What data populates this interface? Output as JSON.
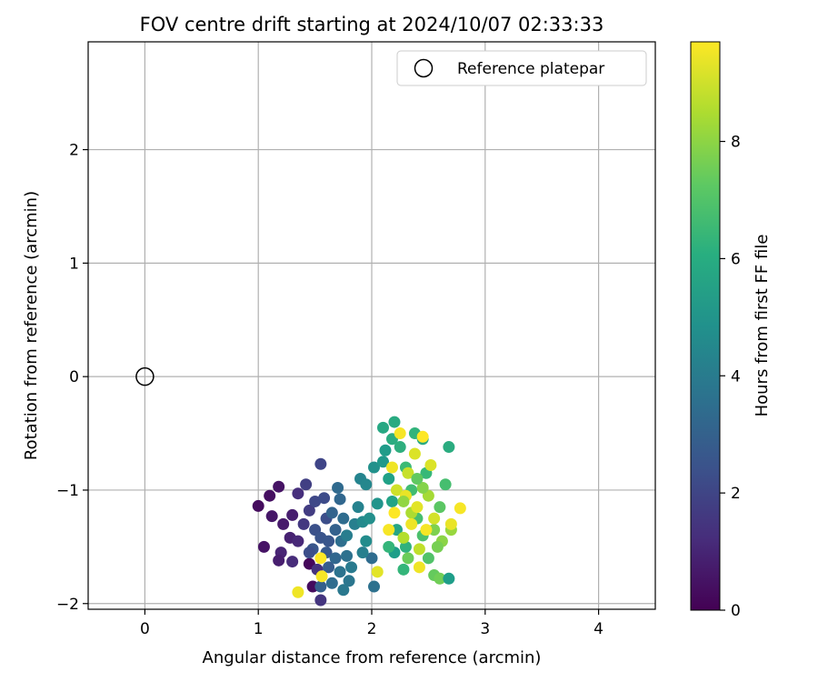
{
  "chart_data": {
    "type": "scatter",
    "title": "FOV centre drift starting at 2024/10/07 02:33:33",
    "xlabel": "Angular distance from reference (arcmin)",
    "ylabel": "Rotation from reference (arcmin)",
    "xlim": [
      -0.5,
      4.5
    ],
    "ylim": [
      -2.05,
      2.95
    ],
    "x_ticks": [
      0,
      1,
      2,
      3,
      4
    ],
    "y_ticks": [
      -2,
      -1,
      0,
      1,
      2
    ],
    "x_tick_labels": [
      "0",
      "1",
      "2",
      "3",
      "4"
    ],
    "y_tick_labels": [
      "−2",
      "−1",
      "0",
      "1",
      "2"
    ],
    "grid": true,
    "legend": {
      "placement": "top-right",
      "entries": [
        {
          "label": "Reference platepar",
          "marker": "open-circle"
        }
      ]
    },
    "reference_point": {
      "x": 0,
      "y": 0
    },
    "colorbar": {
      "label": "Hours from first FF file",
      "colormap": "viridis",
      "range": [
        0,
        9.7
      ],
      "ticks": [
        0,
        2,
        4,
        6,
        8
      ],
      "tick_labels": [
        "0",
        "2",
        "4",
        "6",
        "8"
      ]
    },
    "points": [
      {
        "x": 1.0,
        "y": -1.14,
        "c": 0.3
      },
      {
        "x": 1.1,
        "y": -1.05,
        "c": 0.4
      },
      {
        "x": 1.18,
        "y": -0.97,
        "c": 0.5
      },
      {
        "x": 1.12,
        "y": -1.23,
        "c": 0.6
      },
      {
        "x": 1.22,
        "y": -1.3,
        "c": 0.7
      },
      {
        "x": 1.3,
        "y": -1.22,
        "c": 0.8
      },
      {
        "x": 1.28,
        "y": -1.42,
        "c": 0.9
      },
      {
        "x": 1.05,
        "y": -1.5,
        "c": 0.5
      },
      {
        "x": 1.2,
        "y": -1.55,
        "c": 1.0
      },
      {
        "x": 1.35,
        "y": -1.45,
        "c": 1.1
      },
      {
        "x": 1.3,
        "y": -1.63,
        "c": 1.2
      },
      {
        "x": 1.18,
        "y": -1.62,
        "c": 0.8
      },
      {
        "x": 1.45,
        "y": -1.65,
        "c": 0.2
      },
      {
        "x": 1.48,
        "y": -1.85,
        "c": 0.3
      },
      {
        "x": 1.55,
        "y": -1.97,
        "c": 1.5
      },
      {
        "x": 1.52,
        "y": -1.7,
        "c": 1.4
      },
      {
        "x": 1.4,
        "y": -1.3,
        "c": 1.6
      },
      {
        "x": 1.45,
        "y": -1.18,
        "c": 1.7
      },
      {
        "x": 1.35,
        "y": -1.03,
        "c": 1.3
      },
      {
        "x": 1.42,
        "y": -0.95,
        "c": 1.8
      },
      {
        "x": 1.55,
        "y": -0.77,
        "c": 2.0
      },
      {
        "x": 1.5,
        "y": -1.1,
        "c": 2.1
      },
      {
        "x": 1.58,
        "y": -1.07,
        "c": 2.2
      },
      {
        "x": 1.6,
        "y": -1.25,
        "c": 2.3
      },
      {
        "x": 1.5,
        "y": -1.35,
        "c": 2.4
      },
      {
        "x": 1.55,
        "y": -1.42,
        "c": 2.5
      },
      {
        "x": 1.48,
        "y": -1.52,
        "c": 2.6
      },
      {
        "x": 1.6,
        "y": -1.55,
        "c": 2.7
      },
      {
        "x": 1.62,
        "y": -1.68,
        "c": 2.8
      },
      {
        "x": 1.55,
        "y": -1.85,
        "c": 2.9
      },
      {
        "x": 1.68,
        "y": -1.35,
        "c": 3.0
      },
      {
        "x": 1.65,
        "y": -1.2,
        "c": 3.1
      },
      {
        "x": 1.72,
        "y": -1.08,
        "c": 3.2
      },
      {
        "x": 1.7,
        "y": -0.98,
        "c": 3.3
      },
      {
        "x": 1.75,
        "y": -1.25,
        "c": 3.4
      },
      {
        "x": 1.73,
        "y": -1.45,
        "c": 3.5
      },
      {
        "x": 1.78,
        "y": -1.58,
        "c": 3.6
      },
      {
        "x": 1.72,
        "y": -1.72,
        "c": 3.7
      },
      {
        "x": 1.8,
        "y": -1.8,
        "c": 3.8
      },
      {
        "x": 1.75,
        "y": -1.88,
        "c": 3.9
      },
      {
        "x": 1.82,
        "y": -1.68,
        "c": 4.0
      },
      {
        "x": 1.78,
        "y": -1.4,
        "c": 4.1
      },
      {
        "x": 1.85,
        "y": -1.3,
        "c": 4.2
      },
      {
        "x": 1.88,
        "y": -1.15,
        "c": 4.3
      },
      {
        "x": 1.9,
        "y": -0.9,
        "c": 4.4
      },
      {
        "x": 1.95,
        "y": -0.95,
        "c": 4.5
      },
      {
        "x": 1.92,
        "y": -1.28,
        "c": 4.6
      },
      {
        "x": 1.95,
        "y": -1.45,
        "c": 4.7
      },
      {
        "x": 2.0,
        "y": -1.6,
        "c": 3.4
      },
      {
        "x": 2.02,
        "y": -1.85,
        "c": 3.6
      },
      {
        "x": 1.98,
        "y": -1.25,
        "c": 4.8
      },
      {
        "x": 2.02,
        "y": -0.8,
        "c": 4.9
      },
      {
        "x": 2.05,
        "y": -1.12,
        "c": 5.0
      },
      {
        "x": 2.1,
        "y": -0.75,
        "c": 5.2
      },
      {
        "x": 2.1,
        "y": -0.45,
        "c": 5.8
      },
      {
        "x": 2.2,
        "y": -0.4,
        "c": 5.9
      },
      {
        "x": 2.18,
        "y": -0.55,
        "c": 6.0
      },
      {
        "x": 2.25,
        "y": -0.62,
        "c": 6.1
      },
      {
        "x": 2.15,
        "y": -0.9,
        "c": 5.5
      },
      {
        "x": 2.18,
        "y": -1.1,
        "c": 5.6
      },
      {
        "x": 2.22,
        "y": -1.35,
        "c": 5.7
      },
      {
        "x": 2.2,
        "y": -1.55,
        "c": 5.4
      },
      {
        "x": 2.28,
        "y": -1.7,
        "c": 6.4
      },
      {
        "x": 2.3,
        "y": -1.5,
        "c": 6.2
      },
      {
        "x": 2.38,
        "y": -0.5,
        "c": 6.3
      },
      {
        "x": 2.45,
        "y": -0.55,
        "c": 5.9
      },
      {
        "x": 2.48,
        "y": -0.85,
        "c": 6.5
      },
      {
        "x": 2.3,
        "y": -0.8,
        "c": 6.6
      },
      {
        "x": 2.35,
        "y": -1.0,
        "c": 6.7
      },
      {
        "x": 2.4,
        "y": -1.25,
        "c": 6.8
      },
      {
        "x": 2.45,
        "y": -1.4,
        "c": 6.9
      },
      {
        "x": 2.5,
        "y": -1.6,
        "c": 7.0
      },
      {
        "x": 2.55,
        "y": -1.75,
        "c": 7.4
      },
      {
        "x": 2.6,
        "y": -1.78,
        "c": 7.6
      },
      {
        "x": 2.68,
        "y": -1.78,
        "c": 5.4
      },
      {
        "x": 2.68,
        "y": -0.62,
        "c": 6.0
      },
      {
        "x": 2.65,
        "y": -0.95,
        "c": 6.8
      },
      {
        "x": 2.6,
        "y": -1.15,
        "c": 7.2
      },
      {
        "x": 2.55,
        "y": -1.35,
        "c": 7.8
      },
      {
        "x": 2.62,
        "y": -1.45,
        "c": 8.0
      },
      {
        "x": 2.7,
        "y": -1.35,
        "c": 8.2
      },
      {
        "x": 2.5,
        "y": -1.05,
        "c": 8.4
      },
      {
        "x": 2.35,
        "y": -1.2,
        "c": 8.5
      },
      {
        "x": 2.28,
        "y": -1.42,
        "c": 8.6
      },
      {
        "x": 2.42,
        "y": -1.52,
        "c": 8.8
      },
      {
        "x": 2.32,
        "y": -0.85,
        "c": 8.9
      },
      {
        "x": 2.22,
        "y": -1.0,
        "c": 9.0
      },
      {
        "x": 2.25,
        "y": -0.5,
        "c": 9.6
      },
      {
        "x": 2.45,
        "y": -0.53,
        "c": 9.7
      },
      {
        "x": 2.38,
        "y": -0.68,
        "c": 9.2
      },
      {
        "x": 2.18,
        "y": -0.8,
        "c": 9.5
      },
      {
        "x": 2.3,
        "y": -1.05,
        "c": 9.4
      },
      {
        "x": 2.4,
        "y": -1.15,
        "c": 9.3
      },
      {
        "x": 2.55,
        "y": -1.25,
        "c": 9.1
      },
      {
        "x": 2.48,
        "y": -1.35,
        "c": 9.6
      },
      {
        "x": 2.35,
        "y": -1.3,
        "c": 9.5
      },
      {
        "x": 2.2,
        "y": -1.2,
        "c": 9.7
      },
      {
        "x": 2.15,
        "y": -1.35,
        "c": 9.6
      },
      {
        "x": 2.42,
        "y": -1.68,
        "c": 9.5
      },
      {
        "x": 2.78,
        "y": -1.16,
        "c": 9.6
      },
      {
        "x": 2.7,
        "y": -1.3,
        "c": 9.4
      },
      {
        "x": 2.52,
        "y": -0.78,
        "c": 9.2
      },
      {
        "x": 2.05,
        "y": -1.72,
        "c": 9.3
      },
      {
        "x": 1.55,
        "y": -1.6,
        "c": 9.7
      },
      {
        "x": 1.56,
        "y": -1.76,
        "c": 9.6
      },
      {
        "x": 1.35,
        "y": -1.9,
        "c": 9.5
      },
      {
        "x": 2.28,
        "y": -1.1,
        "c": 8.1
      },
      {
        "x": 2.45,
        "y": -0.98,
        "c": 7.9
      },
      {
        "x": 2.58,
        "y": -1.5,
        "c": 7.7
      },
      {
        "x": 2.32,
        "y": -1.6,
        "c": 7.5
      },
      {
        "x": 2.4,
        "y": -0.9,
        "c": 7.3
      },
      {
        "x": 2.15,
        "y": -1.5,
        "c": 6.4
      },
      {
        "x": 2.12,
        "y": -0.65,
        "c": 5.3
      },
      {
        "x": 1.92,
        "y": -1.55,
        "c": 4.2
      },
      {
        "x": 1.68,
        "y": -1.6,
        "c": 3.2
      },
      {
        "x": 1.65,
        "y": -1.82,
        "c": 3.4
      },
      {
        "x": 1.45,
        "y": -1.55,
        "c": 2.3
      },
      {
        "x": 1.62,
        "y": -1.45,
        "c": 2.6
      }
    ]
  }
}
